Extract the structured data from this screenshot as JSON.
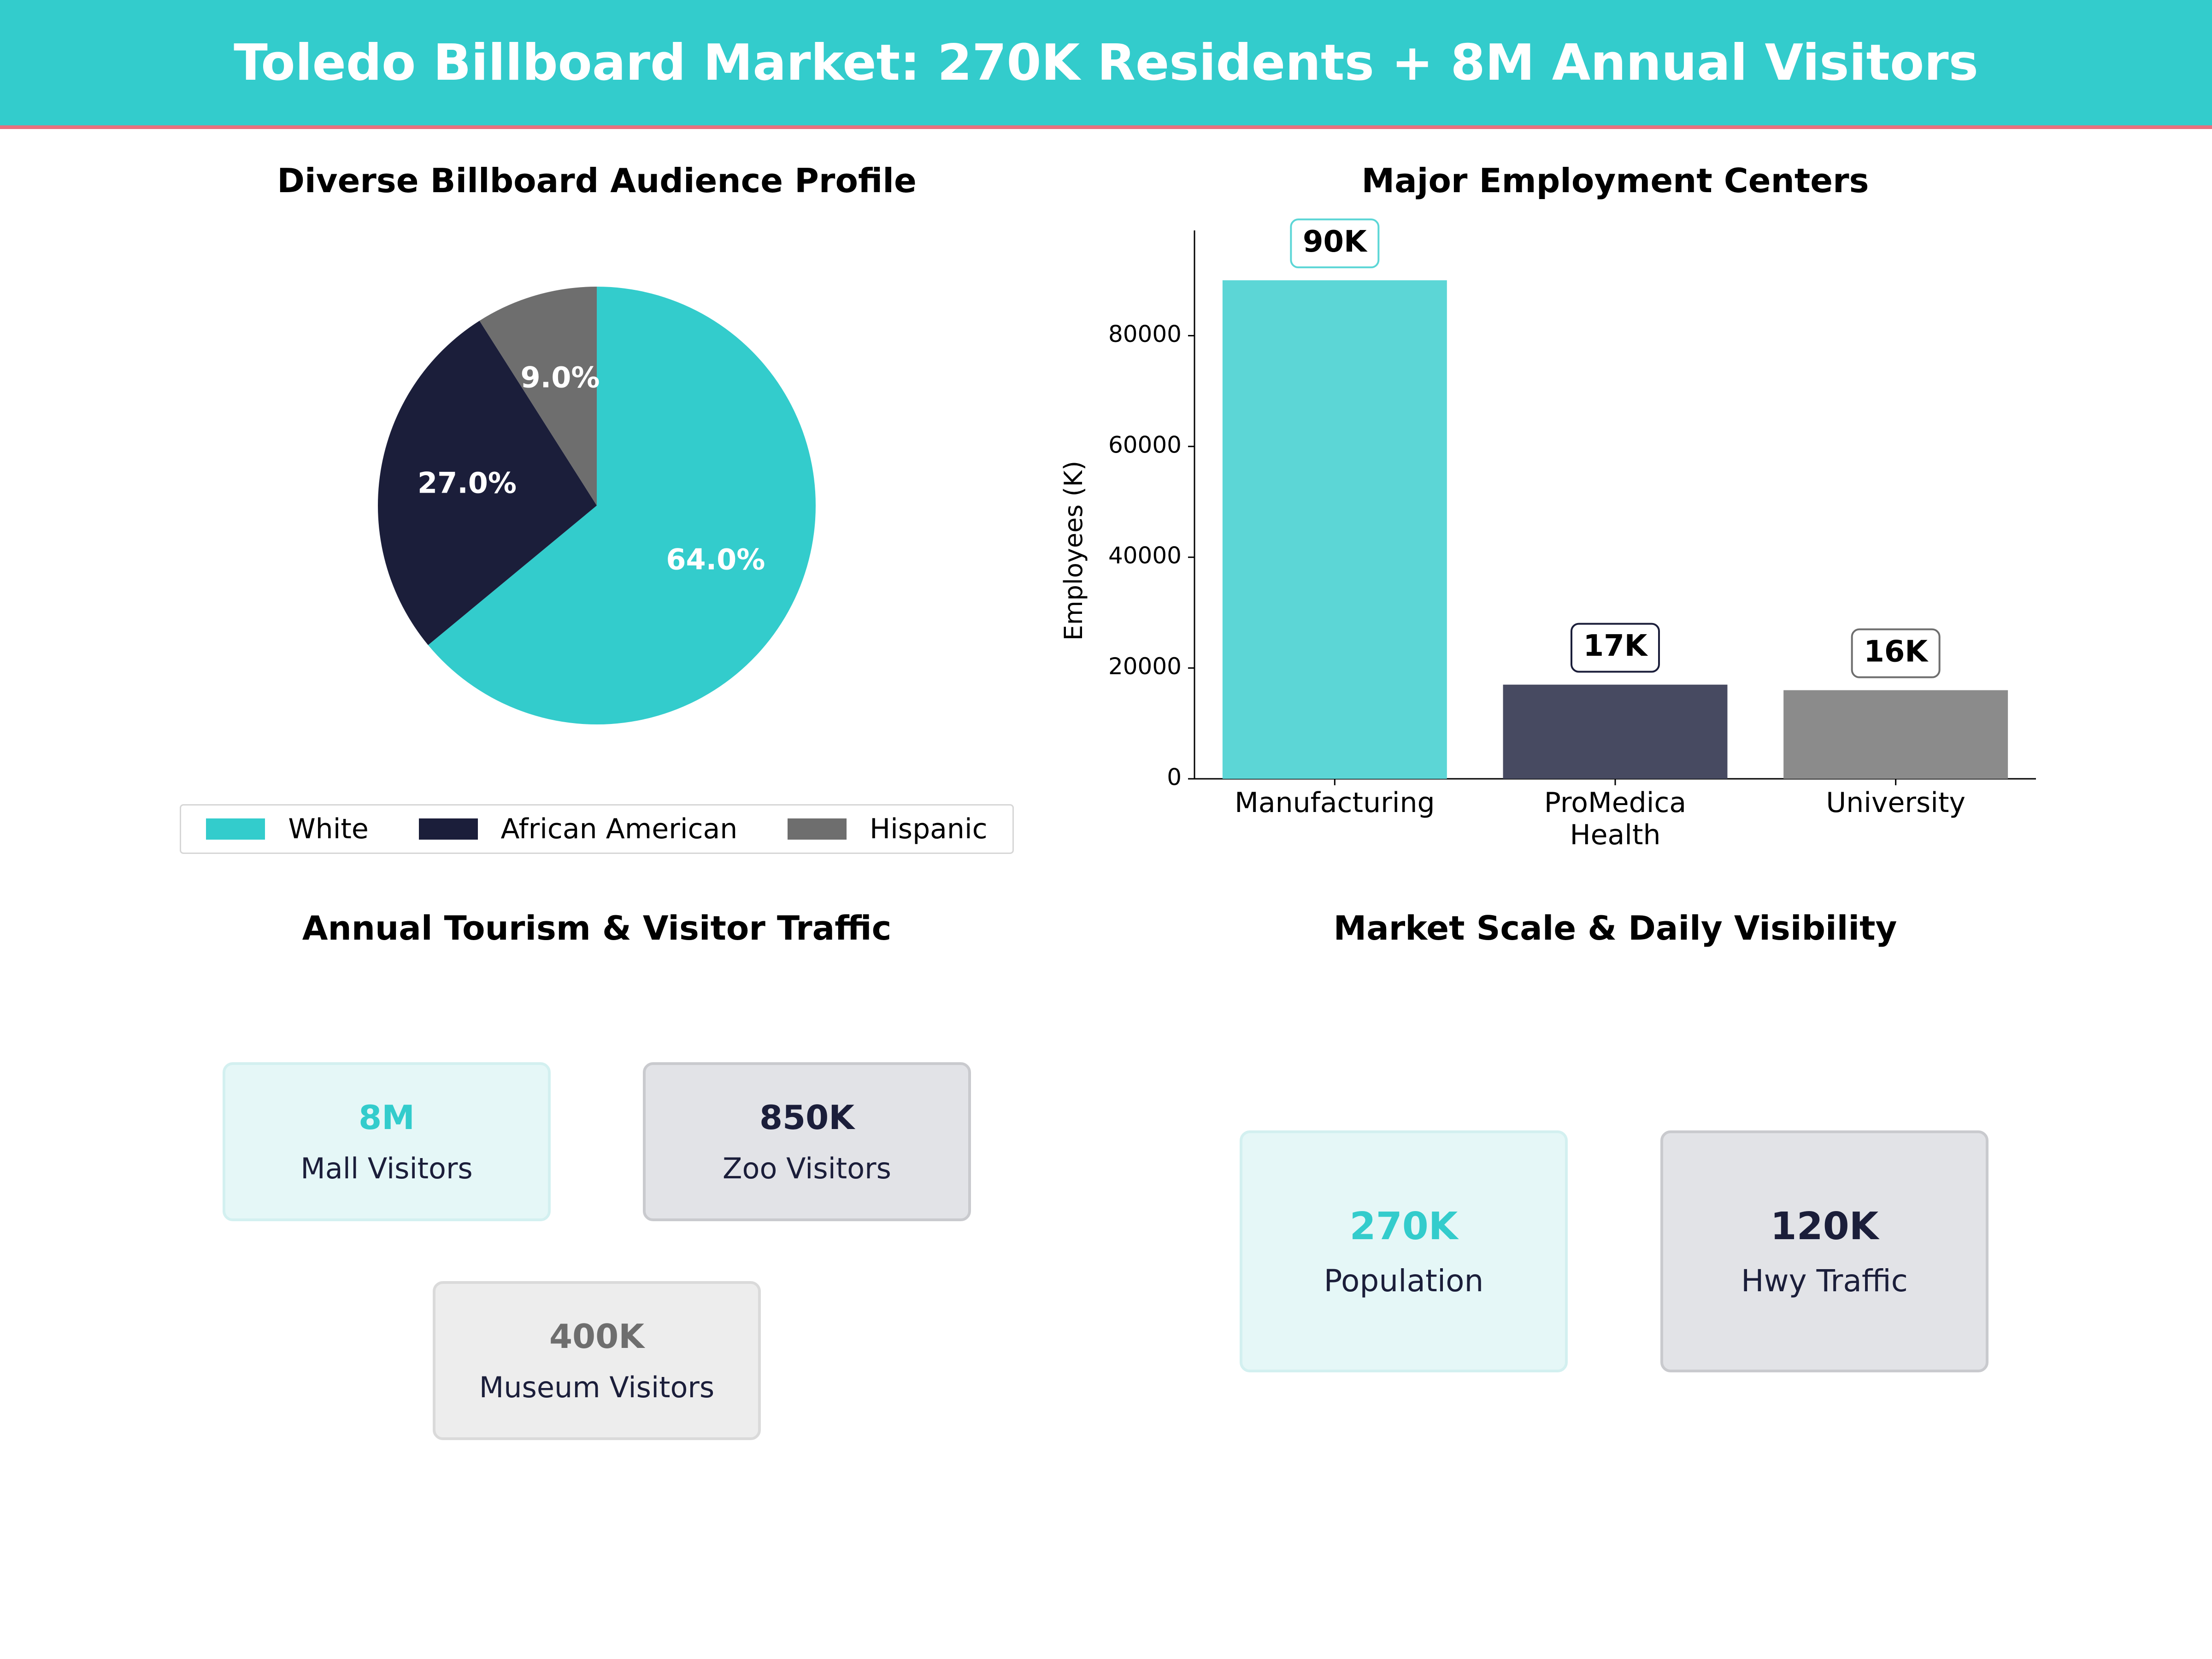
{
  "header": {
    "title": "Toledo Billboard Market: 270K Residents + 8M Annual Visitors"
  },
  "colors": {
    "teal": "#33cccc",
    "navy": "#1b1e3a",
    "gray": "#6e6e6e",
    "header_accent": "#e8707e"
  },
  "chart_data": [
    {
      "type": "pie",
      "title": "Diverse Billboard Audience Profile",
      "labels": [
        "White",
        "African American",
        "Hispanic"
      ],
      "values": [
        64.0,
        27.0,
        9.0
      ],
      "value_labels": [
        "64.0%",
        "27.0%",
        "9.0%"
      ],
      "colors": [
        "#33cccc",
        "#1b1e3a",
        "#6e6e6e"
      ],
      "legend": "bottom"
    },
    {
      "type": "bar",
      "title": "Major Employment Centers",
      "categories": [
        "Manufacturing",
        "ProMedica\nHealth",
        "University"
      ],
      "values": [
        90000,
        17000,
        16000
      ],
      "value_labels": [
        "90K",
        "17K",
        "16K"
      ],
      "ylabel": "Employees (K)",
      "ylim": [
        0,
        99000
      ],
      "yticks": [
        0,
        20000,
        40000,
        60000,
        80000
      ],
      "colors": [
        "#5cd6d6",
        "#474a61",
        "#8b8b8b"
      ],
      "label_border_colors": [
        "#5cd6d6",
        "#1b1e3a",
        "#6e6e6e"
      ],
      "grid": false
    }
  ],
  "tourism": {
    "title": "Annual Tourism & Visitor Traffic",
    "cards": [
      {
        "value": "8M",
        "label": "Mall Visitors"
      },
      {
        "value": "850K",
        "label": "Zoo Visitors"
      },
      {
        "value": "400K",
        "label": "Museum Visitors"
      }
    ]
  },
  "market": {
    "title": "Market Scale & Daily Visibility",
    "cards": [
      {
        "value": "270K",
        "label": "Population"
      },
      {
        "value": "120K",
        "label": "Hwy Traffic"
      }
    ]
  }
}
